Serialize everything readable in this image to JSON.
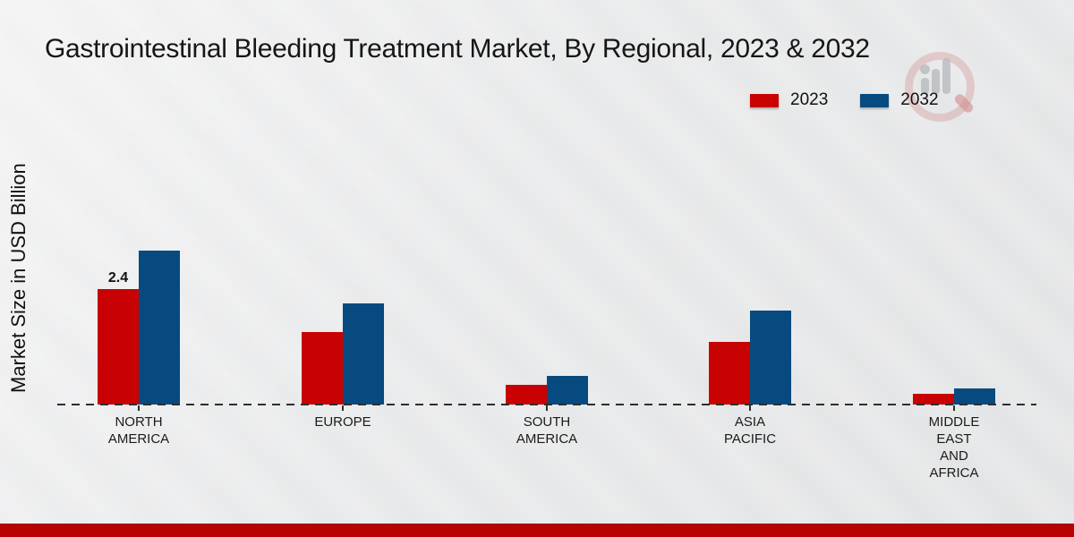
{
  "title": "Gastrointestinal Bleeding Treatment Market, By Regional, 2023 & 2032",
  "y_axis_label": "Market Size in USD Billion",
  "legend": {
    "items": [
      {
        "label": "2023",
        "color": "#c80202"
      },
      {
        "label": "2032",
        "color": "#064a7f"
      }
    ]
  },
  "chart_data": {
    "type": "bar",
    "title": "Gastrointestinal Bleeding Treatment Market, By Regional, 2023 & 2032",
    "ylabel": "Market Size in USD Billion",
    "xlabel": "",
    "categories": [
      "NORTH AMERICA",
      "EUROPE",
      "SOUTH AMERICA",
      "ASIA PACIFIC",
      "MIDDLE EAST AND AFRICA"
    ],
    "category_display_lines": [
      [
        "NORTH",
        "AMERICA"
      ],
      [
        "EUROPE"
      ],
      [
        "SOUTH",
        "AMERICA"
      ],
      [
        "ASIA",
        "PACIFIC"
      ],
      [
        "MIDDLE",
        "EAST",
        "AND",
        "AFRICA"
      ]
    ],
    "series": [
      {
        "name": "2023",
        "color": "#c80202",
        "values": [
          2.4,
          1.5,
          0.4,
          1.3,
          0.22
        ]
      },
      {
        "name": "2032",
        "color": "#064a7f",
        "values": [
          3.2,
          2.1,
          0.6,
          1.95,
          0.33
        ]
      }
    ],
    "bar_labels": [
      [
        "2.4",
        "",
        "",
        "",
        ""
      ],
      [
        "",
        "",
        "",
        "",
        ""
      ]
    ],
    "ylim": [
      0,
      3.6
    ],
    "grid": false,
    "legend_position": "top-right",
    "baseline_style": "dashed"
  },
  "colors": {
    "series_2023": "#c80202",
    "series_2032": "#064a7f",
    "bottom_strip": "#b90303",
    "background": "#e8e9ea",
    "text": "#1a1a1a"
  },
  "watermark": {
    "name": "market-research-logo"
  }
}
